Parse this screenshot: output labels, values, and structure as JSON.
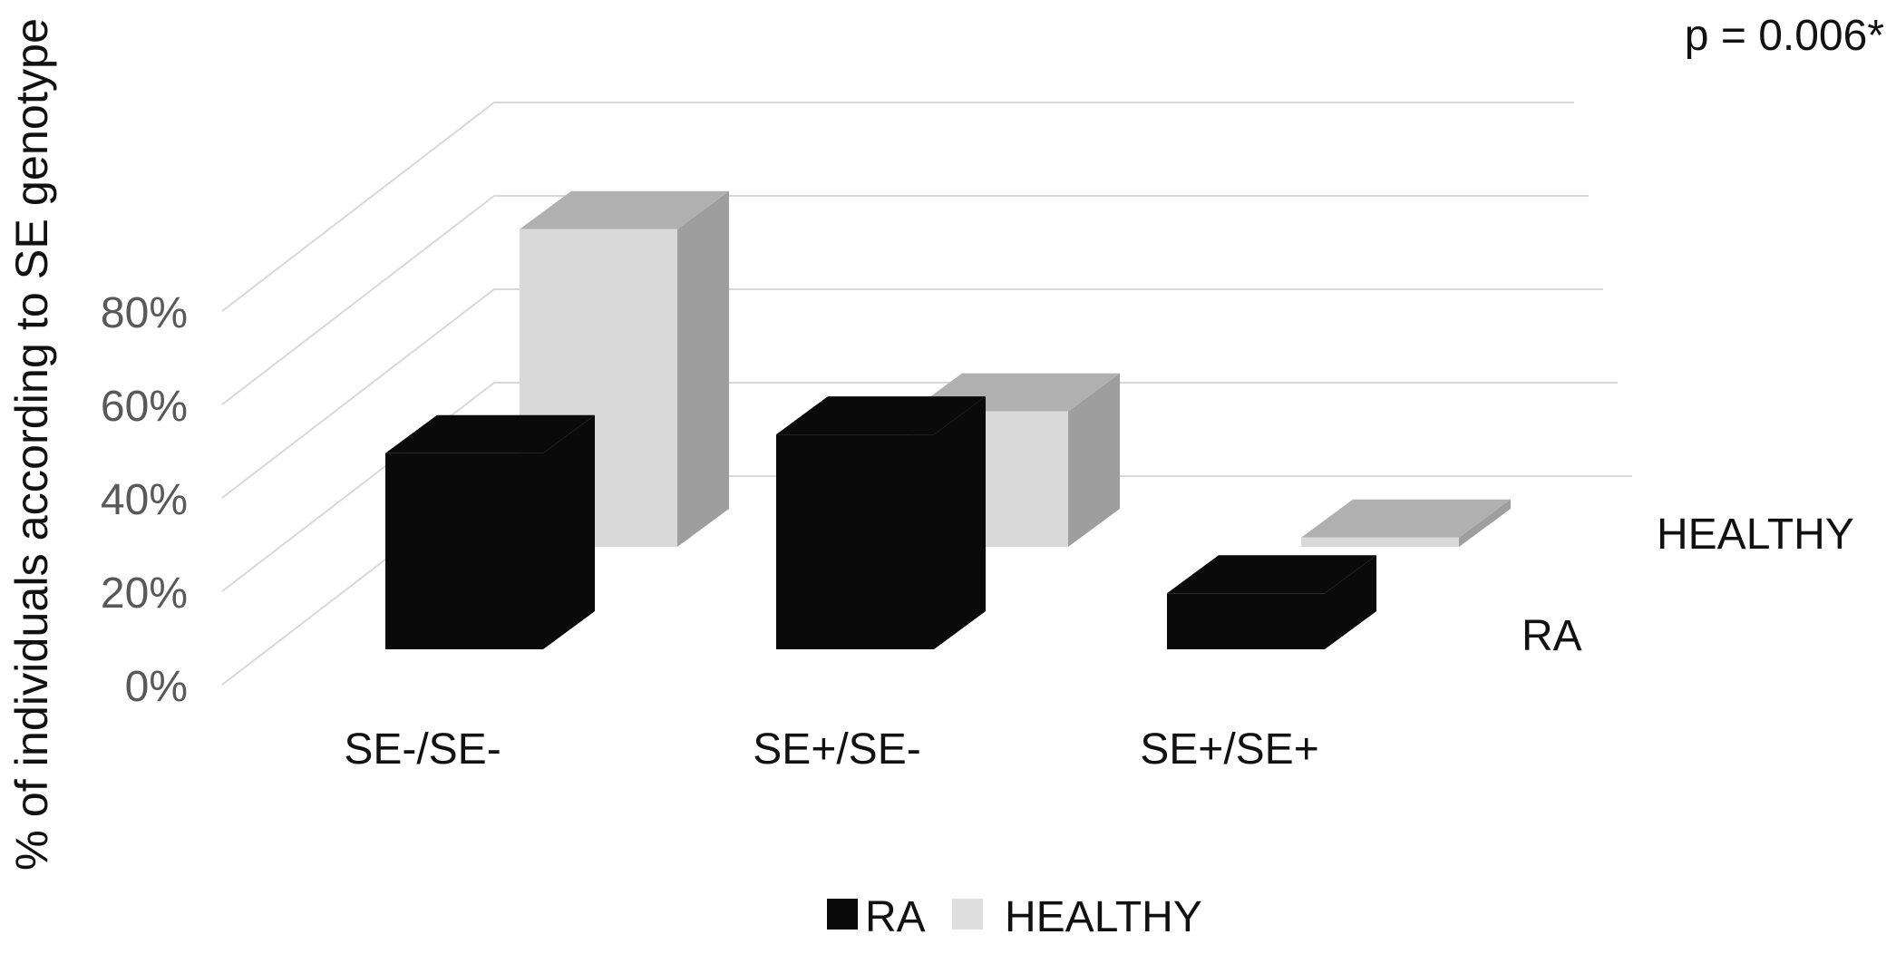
{
  "figure": {
    "p_value_annotation": "p = 0.006*",
    "row_labels": {
      "front": "RA",
      "back": "HEALTHY"
    },
    "legend": [
      {
        "label": "RA",
        "color": "#0a0a0a"
      },
      {
        "label": "HEALTHY",
        "color": "#dfdfdf"
      }
    ]
  },
  "colors": {
    "grid": "#d8d8d8",
    "tick_text": "#595959",
    "text": "#111111",
    "background": "#ffffff"
  },
  "chart_data": {
    "type": "bar",
    "style": "3d-clustered-depth-rows",
    "title": "",
    "xlabel": "",
    "ylabel": "% of individuals according to SE genotype",
    "categories": [
      "SE-/SE-",
      "SE+/SE-",
      "SE+/SE+"
    ],
    "series": [
      {
        "name": "RA",
        "values": [
          42,
          46,
          12
        ],
        "row": "front",
        "faces": {
          "front": "#0a0a0a",
          "top": "#0a0a0a",
          "side": "#0a0a0a"
        }
      },
      {
        "name": "HEALTHY",
        "values": [
          68,
          29,
          2
        ],
        "row": "back",
        "faces": {
          "front": "#d9d9d9",
          "top": "#b0b0b0",
          "side": "#9e9e9e"
        }
      }
    ],
    "ylim": [
      0,
      100
    ],
    "ytick_step": 20,
    "yticks_labels": [
      "0%",
      "20%",
      "40%",
      "60%",
      "80%"
    ],
    "grid": true,
    "legend_position": "bottom",
    "annotations": [
      {
        "text": "p = 0.006*",
        "position": "top-right"
      }
    ]
  }
}
